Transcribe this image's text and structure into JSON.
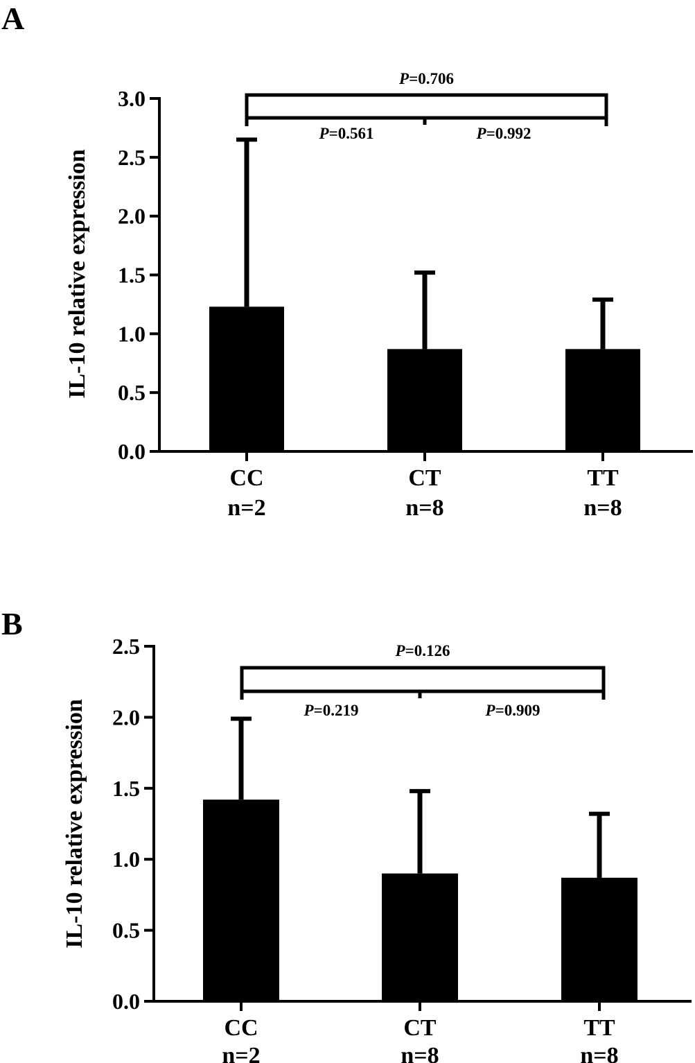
{
  "chart_data": [
    {
      "type": "bar",
      "panel": "A",
      "ylabel": "IL-10 relative expression",
      "xlabel": "",
      "ylim": [
        0,
        3.0
      ],
      "yticks": [
        "0.0",
        "0.5",
        "1.0",
        "1.5",
        "2.0",
        "2.5",
        "3.0"
      ],
      "categories": [
        "CC",
        "CT",
        "TT"
      ],
      "n_labels": [
        "n=2",
        "n=8",
        "n=8"
      ],
      "values": [
        1.23,
        0.87,
        0.87
      ],
      "error_upper": [
        2.65,
        1.52,
        1.29
      ],
      "comparisons": {
        "overall": {
          "prefix": "P",
          "text": "=0.706"
        },
        "left": {
          "prefix": "P",
          "text": "=0.561"
        },
        "right": {
          "prefix": "P",
          "text": "=0.992"
        }
      }
    },
    {
      "type": "bar",
      "panel": "B",
      "ylabel": "IL-10 relative expression",
      "xlabel": "",
      "ylim": [
        0,
        2.5
      ],
      "yticks": [
        "0.0",
        "0.5",
        "1.0",
        "1.5",
        "2.0",
        "2.5"
      ],
      "categories": [
        "CC",
        "CT",
        "TT"
      ],
      "n_labels": [
        "n=2",
        "n=8",
        "n=8"
      ],
      "values": [
        1.42,
        0.9,
        0.87
      ],
      "error_upper": [
        1.99,
        1.48,
        1.32
      ],
      "comparisons": {
        "overall": {
          "prefix": "P",
          "text": "=0.126"
        },
        "left": {
          "prefix": "P",
          "text": "=0.219"
        },
        "right": {
          "prefix": "P",
          "text": "=0.909"
        }
      }
    }
  ]
}
